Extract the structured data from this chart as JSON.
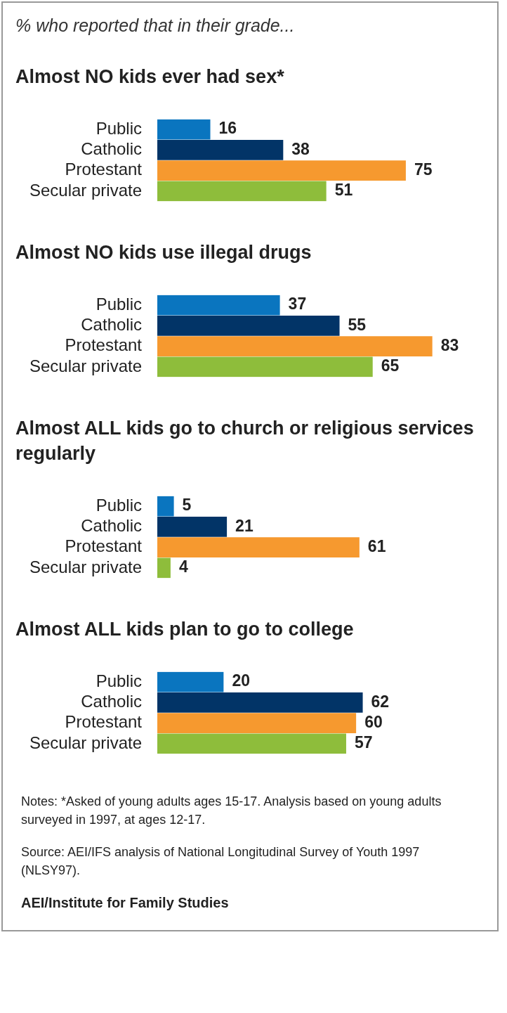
{
  "chart_data": [
    {
      "type": "bar",
      "orientation": "horizontal",
      "subtitle": "% who reported that in their grade...",
      "title": "Almost NO kids ever had sex*",
      "categories": [
        "Public",
        "Catholic",
        "Protestant",
        "Secular private"
      ],
      "values": [
        16,
        38,
        75,
        51
      ],
      "colors": [
        "#0a75bf",
        "#023467",
        "#f6992f",
        "#8ebd3b"
      ],
      "data_labels": true
    },
    {
      "type": "bar",
      "orientation": "horizontal",
      "title": "Almost NO kids use illegal drugs",
      "categories": [
        "Public",
        "Catholic",
        "Protestant",
        "Secular private"
      ],
      "values": [
        37,
        55,
        83,
        65
      ],
      "colors": [
        "#0a75bf",
        "#023467",
        "#f6992f",
        "#8ebd3b"
      ],
      "data_labels": true
    },
    {
      "type": "bar",
      "orientation": "horizontal",
      "title": "Almost ALL kids go to church or religious services regularly",
      "categories": [
        "Public",
        "Catholic",
        "Protestant",
        "Secular private"
      ],
      "values": [
        5,
        21,
        61,
        4
      ],
      "colors": [
        "#0a75bf",
        "#023467",
        "#f6992f",
        "#8ebd3b"
      ],
      "data_labels": true
    },
    {
      "type": "bar",
      "orientation": "horizontal",
      "title": "Almost ALL kids plan to go to college",
      "categories": [
        "Public",
        "Catholic",
        "Protestant",
        "Secular private"
      ],
      "values": [
        20,
        62,
        60,
        57
      ],
      "colors": [
        "#0a75bf",
        "#023467",
        "#f6992f",
        "#8ebd3b"
      ],
      "data_labels": true,
      "annotations": [
        "Notes: *Asked of young adults ages 15-17. Analysis based on young adults surveyed in 1997, at ages 12-17.",
        "Source: AEI/IFS analysis of National Longitudinal Survey of Youth 1997 (NLSY97).",
        "AEI/Institute for Family Studies"
      ]
    }
  ]
}
